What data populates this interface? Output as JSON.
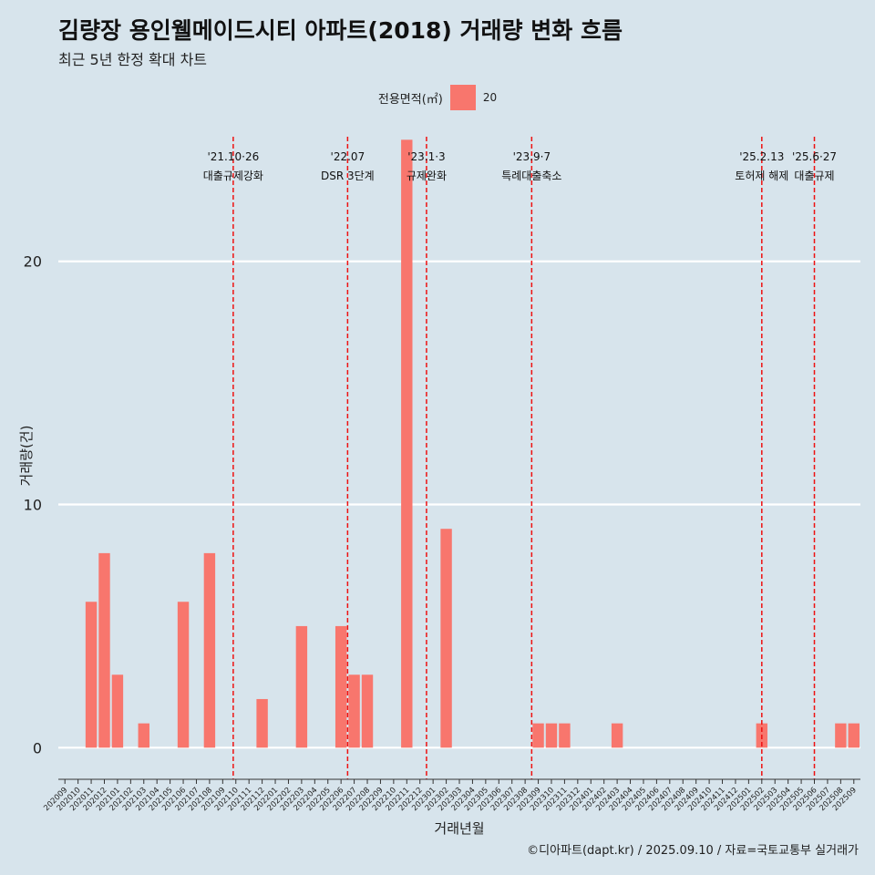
{
  "title": "김량장 용인웰메이드시티 아파트(2018) 거래량 변화 흐름",
  "subtitle": "최근 5년 한정 확대 차트",
  "caption": "©디아파트(dapt.kr) / 2025.09.10 / 자료=국토교통부 실거래가",
  "legend": {
    "title": "전용면적(㎡)",
    "label": "20",
    "color": "#f8766d"
  },
  "chart_data": {
    "type": "bar",
    "xlabel": "거래년월",
    "ylabel": "거래량(건)",
    "ylim": [
      -1.3,
      25.5
    ],
    "yticks": [
      0,
      10,
      20
    ],
    "grid": true,
    "legend_position": "top",
    "bar_color": "#f8766d",
    "categories": [
      "202009",
      "202010",
      "202011",
      "202012",
      "202101",
      "202102",
      "202103",
      "202104",
      "202105",
      "202106",
      "202107",
      "202108",
      "202109",
      "202110",
      "202111",
      "202112",
      "202201",
      "202202",
      "202203",
      "202204",
      "202205",
      "202206",
      "202207",
      "202208",
      "202209",
      "202210",
      "202211",
      "202212",
      "202301",
      "202302",
      "202303",
      "202304",
      "202305",
      "202306",
      "202307",
      "202308",
      "202309",
      "202310",
      "202311",
      "202312",
      "202401",
      "202402",
      "202403",
      "202404",
      "202405",
      "202406",
      "202407",
      "202408",
      "202409",
      "202410",
      "202411",
      "202412",
      "202501",
      "202502",
      "202503",
      "202504",
      "202505",
      "202506",
      "202507",
      "202508",
      "202509"
    ],
    "values": [
      0,
      0,
      6,
      8,
      3,
      0,
      1,
      0,
      0,
      6,
      0,
      8,
      0,
      0,
      0,
      2,
      0,
      0,
      5,
      0,
      0,
      5,
      3,
      3,
      0,
      0,
      25,
      0,
      0,
      9,
      0,
      0,
      0,
      0,
      0,
      0,
      1,
      1,
      1,
      0,
      0,
      0,
      1,
      0,
      0,
      0,
      0,
      0,
      0,
      0,
      0,
      0,
      0,
      1,
      0,
      0,
      0,
      0,
      0,
      1,
      1
    ],
    "events": [
      {
        "date": "'21.10·26",
        "label": "대출규제강화",
        "index": 13.3
      },
      {
        "date": "'22.07",
        "label": "DSR 3단계",
        "index": 22.0
      },
      {
        "date": "'23.1·3",
        "label": "규제완화",
        "index": 28.0
      },
      {
        "date": "'23.9·7",
        "label": "특례대출축소",
        "index": 36.0
      },
      {
        "date": "'25.2.13",
        "label": "토허제 해제",
        "index": 53.5
      },
      {
        "date": "'25.6·27",
        "label": "대출규제",
        "index": 57.5
      }
    ]
  }
}
